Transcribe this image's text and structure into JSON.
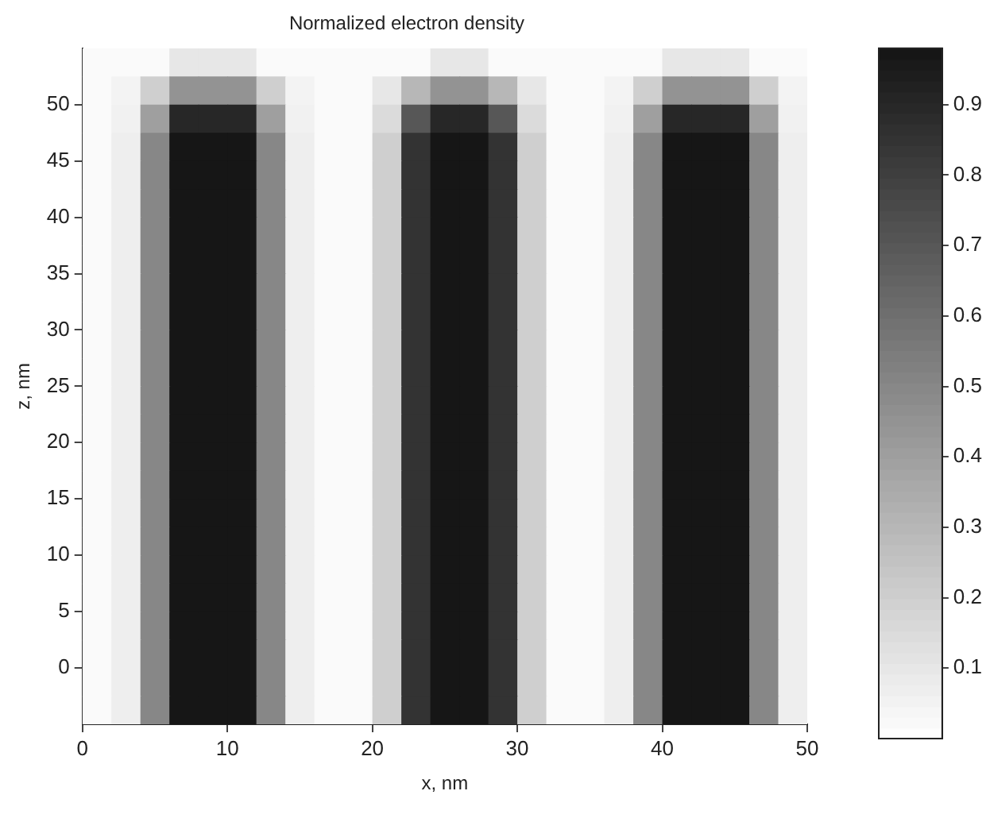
{
  "chart_data": {
    "type": "heatmap",
    "title": "Normalized electron density",
    "xlabel": "x, nm",
    "ylabel": "z, nm",
    "x": [
      1,
      3,
      5,
      7,
      9,
      11,
      13,
      15,
      17,
      19,
      21,
      23,
      25,
      27,
      29,
      31,
      33,
      35,
      37,
      39,
      41,
      43,
      45,
      47,
      49
    ],
    "y": [
      53.75,
      51.25,
      48.75,
      46.25,
      43.75,
      41.25,
      38.75,
      36.25,
      33.75,
      31.25,
      28.75,
      26.25,
      23.75,
      21.25,
      18.75,
      16.25,
      13.75,
      11.25,
      8.75,
      6.25,
      3.75,
      1.25,
      -1.25,
      -3.75
    ],
    "xlim": [
      0,
      50
    ],
    "xticks": [
      0,
      10,
      20,
      30,
      40,
      50
    ],
    "ylim": [
      -5,
      55
    ],
    "yticks": [
      0,
      5,
      10,
      15,
      20,
      25,
      30,
      35,
      40,
      45,
      50
    ],
    "clim": [
      0,
      0.98
    ],
    "cticks": [
      0.1,
      0.2,
      0.3,
      0.4,
      0.5,
      0.6,
      0.7,
      0.8,
      0.9
    ],
    "grid": false,
    "cells": [
      [
        0.02,
        0.02,
        0.02,
        0.1,
        0.1,
        0.1,
        0.02,
        0.02,
        0.02,
        0.02,
        0.02,
        0.02,
        0.1,
        0.1,
        0.02,
        0.02,
        0.02,
        0.02,
        0.02,
        0.02,
        0.1,
        0.1,
        0.1,
        0.02,
        0.02
      ],
      [
        0.02,
        0.05,
        0.2,
        0.45,
        0.45,
        0.45,
        0.2,
        0.05,
        0.02,
        0.02,
        0.1,
        0.3,
        0.45,
        0.45,
        0.3,
        0.1,
        0.02,
        0.02,
        0.05,
        0.2,
        0.45,
        0.45,
        0.45,
        0.2,
        0.05
      ],
      [
        0.02,
        0.06,
        0.4,
        0.9,
        0.9,
        0.9,
        0.4,
        0.06,
        0.02,
        0.02,
        0.15,
        0.7,
        0.9,
        0.9,
        0.7,
        0.15,
        0.02,
        0.02,
        0.06,
        0.4,
        0.9,
        0.9,
        0.9,
        0.4,
        0.06
      ],
      [
        0.02,
        0.07,
        0.5,
        0.97,
        0.97,
        0.97,
        0.5,
        0.07,
        0.02,
        0.02,
        0.2,
        0.85,
        0.97,
        0.97,
        0.85,
        0.2,
        0.02,
        0.02,
        0.07,
        0.5,
        0.97,
        0.97,
        0.97,
        0.5,
        0.07
      ],
      [
        0.02,
        0.07,
        0.5,
        0.97,
        0.97,
        0.97,
        0.5,
        0.07,
        0.02,
        0.02,
        0.2,
        0.85,
        0.97,
        0.97,
        0.85,
        0.2,
        0.02,
        0.02,
        0.07,
        0.5,
        0.97,
        0.97,
        0.97,
        0.5,
        0.07
      ],
      [
        0.02,
        0.07,
        0.5,
        0.97,
        0.97,
        0.97,
        0.5,
        0.07,
        0.02,
        0.02,
        0.2,
        0.85,
        0.97,
        0.97,
        0.85,
        0.2,
        0.02,
        0.02,
        0.07,
        0.5,
        0.97,
        0.97,
        0.97,
        0.5,
        0.07
      ],
      [
        0.02,
        0.07,
        0.5,
        0.97,
        0.97,
        0.97,
        0.5,
        0.07,
        0.02,
        0.02,
        0.2,
        0.85,
        0.97,
        0.97,
        0.85,
        0.2,
        0.02,
        0.02,
        0.07,
        0.5,
        0.97,
        0.97,
        0.97,
        0.5,
        0.07
      ],
      [
        0.02,
        0.07,
        0.5,
        0.97,
        0.97,
        0.97,
        0.5,
        0.07,
        0.02,
        0.02,
        0.2,
        0.85,
        0.97,
        0.97,
        0.85,
        0.2,
        0.02,
        0.02,
        0.07,
        0.5,
        0.97,
        0.97,
        0.97,
        0.5,
        0.07
      ],
      [
        0.02,
        0.07,
        0.5,
        0.97,
        0.97,
        0.97,
        0.5,
        0.07,
        0.02,
        0.02,
        0.2,
        0.85,
        0.97,
        0.97,
        0.85,
        0.2,
        0.02,
        0.02,
        0.07,
        0.5,
        0.97,
        0.97,
        0.97,
        0.5,
        0.07
      ],
      [
        0.02,
        0.07,
        0.5,
        0.97,
        0.97,
        0.97,
        0.5,
        0.07,
        0.02,
        0.02,
        0.2,
        0.85,
        0.97,
        0.97,
        0.85,
        0.2,
        0.02,
        0.02,
        0.07,
        0.5,
        0.97,
        0.97,
        0.97,
        0.5,
        0.07
      ],
      [
        0.02,
        0.07,
        0.5,
        0.97,
        0.97,
        0.97,
        0.5,
        0.07,
        0.02,
        0.02,
        0.2,
        0.85,
        0.97,
        0.97,
        0.85,
        0.2,
        0.02,
        0.02,
        0.07,
        0.5,
        0.97,
        0.97,
        0.97,
        0.5,
        0.07
      ],
      [
        0.02,
        0.07,
        0.5,
        0.97,
        0.97,
        0.97,
        0.5,
        0.07,
        0.02,
        0.02,
        0.2,
        0.85,
        0.97,
        0.97,
        0.85,
        0.2,
        0.02,
        0.02,
        0.07,
        0.5,
        0.97,
        0.97,
        0.97,
        0.5,
        0.07
      ],
      [
        0.02,
        0.07,
        0.5,
        0.97,
        0.97,
        0.97,
        0.5,
        0.07,
        0.02,
        0.02,
        0.2,
        0.85,
        0.97,
        0.97,
        0.85,
        0.2,
        0.02,
        0.02,
        0.07,
        0.5,
        0.97,
        0.97,
        0.97,
        0.5,
        0.07
      ],
      [
        0.02,
        0.07,
        0.5,
        0.97,
        0.97,
        0.97,
        0.5,
        0.07,
        0.02,
        0.02,
        0.2,
        0.85,
        0.97,
        0.97,
        0.85,
        0.2,
        0.02,
        0.02,
        0.07,
        0.5,
        0.97,
        0.97,
        0.97,
        0.5,
        0.07
      ],
      [
        0.02,
        0.07,
        0.5,
        0.97,
        0.97,
        0.97,
        0.5,
        0.07,
        0.02,
        0.02,
        0.2,
        0.85,
        0.97,
        0.97,
        0.85,
        0.2,
        0.02,
        0.02,
        0.07,
        0.5,
        0.97,
        0.97,
        0.97,
        0.5,
        0.07
      ],
      [
        0.02,
        0.07,
        0.5,
        0.97,
        0.97,
        0.97,
        0.5,
        0.07,
        0.02,
        0.02,
        0.2,
        0.85,
        0.97,
        0.97,
        0.85,
        0.2,
        0.02,
        0.02,
        0.07,
        0.5,
        0.97,
        0.97,
        0.97,
        0.5,
        0.07
      ],
      [
        0.02,
        0.07,
        0.5,
        0.97,
        0.97,
        0.97,
        0.5,
        0.07,
        0.02,
        0.02,
        0.2,
        0.85,
        0.97,
        0.97,
        0.85,
        0.2,
        0.02,
        0.02,
        0.07,
        0.5,
        0.97,
        0.97,
        0.97,
        0.5,
        0.07
      ],
      [
        0.02,
        0.07,
        0.5,
        0.97,
        0.97,
        0.97,
        0.5,
        0.07,
        0.02,
        0.02,
        0.2,
        0.85,
        0.97,
        0.97,
        0.85,
        0.2,
        0.02,
        0.02,
        0.07,
        0.5,
        0.97,
        0.97,
        0.97,
        0.5,
        0.07
      ],
      [
        0.02,
        0.07,
        0.5,
        0.97,
        0.97,
        0.97,
        0.5,
        0.07,
        0.02,
        0.02,
        0.2,
        0.85,
        0.97,
        0.97,
        0.85,
        0.2,
        0.02,
        0.02,
        0.07,
        0.5,
        0.97,
        0.97,
        0.97,
        0.5,
        0.07
      ],
      [
        0.02,
        0.07,
        0.5,
        0.97,
        0.97,
        0.97,
        0.5,
        0.07,
        0.02,
        0.02,
        0.2,
        0.85,
        0.97,
        0.97,
        0.85,
        0.2,
        0.02,
        0.02,
        0.07,
        0.5,
        0.97,
        0.97,
        0.97,
        0.5,
        0.07
      ],
      [
        0.02,
        0.07,
        0.5,
        0.97,
        0.97,
        0.97,
        0.5,
        0.07,
        0.02,
        0.02,
        0.2,
        0.85,
        0.97,
        0.97,
        0.85,
        0.2,
        0.02,
        0.02,
        0.07,
        0.5,
        0.97,
        0.97,
        0.97,
        0.5,
        0.07
      ],
      [
        0.02,
        0.07,
        0.5,
        0.97,
        0.97,
        0.97,
        0.5,
        0.07,
        0.02,
        0.02,
        0.2,
        0.85,
        0.97,
        0.97,
        0.85,
        0.2,
        0.02,
        0.02,
        0.07,
        0.5,
        0.97,
        0.97,
        0.97,
        0.5,
        0.07
      ],
      [
        0.02,
        0.07,
        0.5,
        0.97,
        0.97,
        0.97,
        0.5,
        0.07,
        0.02,
        0.02,
        0.2,
        0.85,
        0.97,
        0.97,
        0.85,
        0.2,
        0.02,
        0.02,
        0.07,
        0.5,
        0.97,
        0.97,
        0.97,
        0.5,
        0.07
      ],
      [
        0.02,
        0.07,
        0.5,
        0.97,
        0.97,
        0.97,
        0.5,
        0.07,
        0.02,
        0.02,
        0.2,
        0.85,
        0.97,
        0.97,
        0.85,
        0.2,
        0.02,
        0.02,
        0.07,
        0.5,
        0.97,
        0.97,
        0.97,
        0.5,
        0.07
      ]
    ]
  }
}
